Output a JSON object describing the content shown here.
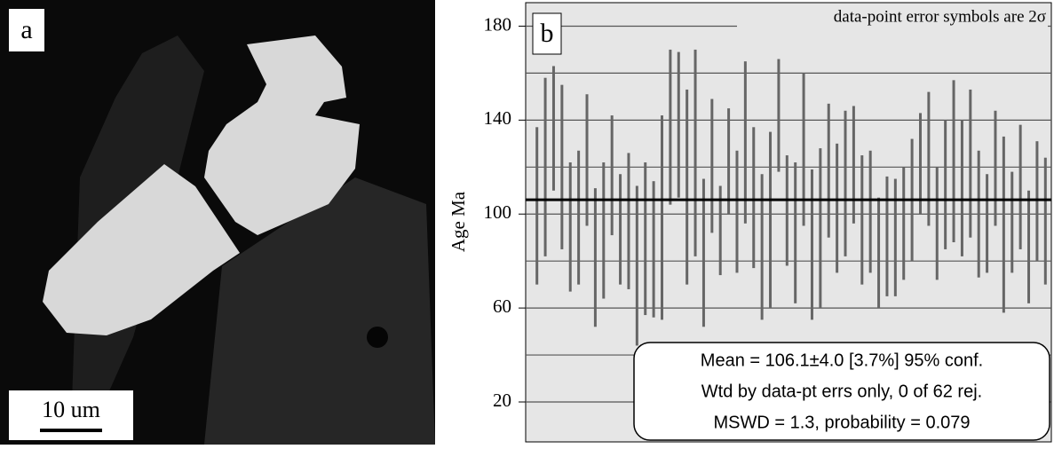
{
  "panel_a": {
    "label": "a",
    "scale_bar": "10 um"
  },
  "chart_data": {
    "type": "errorbar",
    "panel_label": "b",
    "annotation": "data-point error symbols are 2σ",
    "ylabel": "Age Ma",
    "ylim": [
      3,
      190
    ],
    "yticks": [
      20,
      60,
      100,
      140,
      180
    ],
    "ygrid": [
      20,
      40,
      60,
      80,
      100,
      120,
      140,
      160,
      180
    ],
    "grid": true,
    "color": "#666666",
    "mean": 106.1,
    "mean_color": "#000000",
    "values": [
      103.5,
      120,
      136.5,
      120,
      94.5,
      98.5,
      123,
      81.5,
      93,
      116.5,
      93.5,
      97,
      78,
      89.5,
      85,
      98.5,
      137,
      138,
      111.5,
      126,
      83.5,
      120.5,
      93,
      122.5,
      101,
      130.5,
      107,
      86,
      97.5,
      142,
      101.5,
      92,
      127.5,
      87,
      94,
      118.5,
      102.5,
      113,
      121,
      97.5,
      101,
      83.5,
      90.5,
      90,
      96,
      106,
      121.5,
      123.5,
      96,
      112.5,
      122.5,
      111,
      121.5,
      100,
      96,
      119.5,
      95.5,
      96.5,
      111.5,
      86,
      105.5,
      97
    ],
    "errors": [
      33.5,
      38,
      26.5,
      35,
      27.5,
      28.5,
      28,
      29.5,
      29,
      25.5,
      23.5,
      29,
      34,
      32.5,
      29,
      43.5,
      33,
      31,
      41.5,
      44,
      31.5,
      28.5,
      19,
      22.5,
      26,
      34.5,
      30,
      31,
      37.5,
      24,
      23.5,
      30,
      32.5,
      32,
      34,
      28.5,
      27.5,
      31,
      25,
      27.5,
      26,
      23.5,
      25.5,
      25,
      24,
      26,
      21.5,
      28.5,
      24,
      27.5,
      34.5,
      29,
      31.5,
      27,
      21,
      24.5,
      37.5,
      21.5,
      26.5,
      24,
      25.5,
      27
    ],
    "stats": [
      "Mean = 106.1±4.0   [3.7%]  95% conf.",
      "Wtd by data-pt errs only, 0 of 62 rej.",
      "MSWD = 1.3, probability = 0.079"
    ]
  }
}
